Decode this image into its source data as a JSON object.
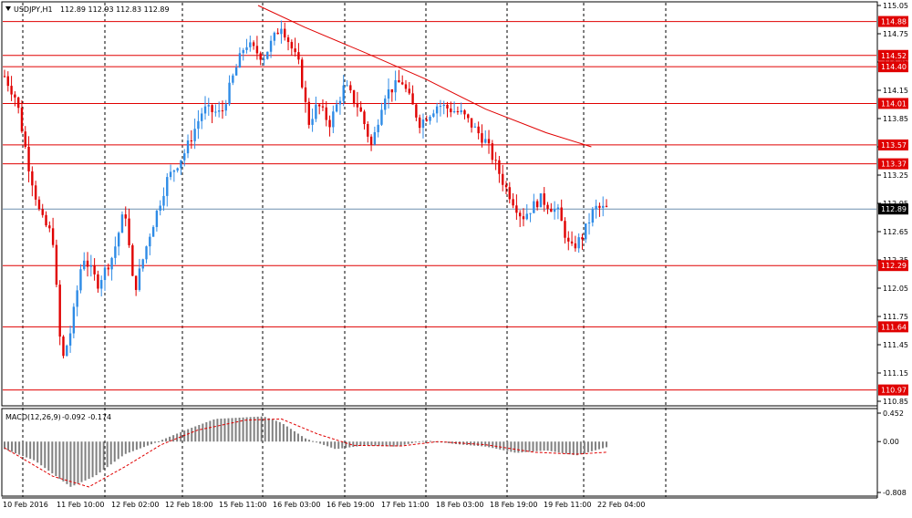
{
  "header": {
    "symbol_label": "USDJPY,H1",
    "ohlc": "112.89 112.93 112.83 112.89",
    "dropdown_icon": "triangle-down-icon"
  },
  "macd": {
    "label": "MACD(12,26,9)",
    "values": "-0.092 -0.174"
  },
  "colors": {
    "bull": "#2E8BE6",
    "bear": "#E00000",
    "level_line": "#E00000",
    "current_line": "#6F8FAF",
    "histogram": "#808080",
    "signal": "#E00000",
    "grid": "#000000"
  },
  "chart_data": [
    {
      "type": "candlestick",
      "title": "USDJPY,H1",
      "ylim": [
        110.85,
        115.05
      ],
      "y_ticks": [
        "115.05",
        "114.75",
        "114.45",
        "114.15",
        "113.85",
        "113.55",
        "113.25",
        "112.95",
        "112.65",
        "112.35",
        "112.05",
        "111.75",
        "111.45",
        "111.15",
        "110.85"
      ],
      "x_tick_labels": [
        "10 Feb 2016",
        "11 Feb 10:00",
        "12 Feb 02:00",
        "12 Feb 18:00",
        "15 Feb 11:00",
        "16 Feb 03:00",
        "16 Feb 19:00",
        "17 Feb 11:00",
        "18 Feb 03:00",
        "18 Feb 19:00",
        "19 Feb 11:00",
        "22 Feb 04:00"
      ],
      "horizontal_levels": [
        {
          "price": 114.88,
          "label": "114.88"
        },
        {
          "price": 114.52,
          "label": "114.52"
        },
        {
          "price": 114.4,
          "label": "114.40"
        },
        {
          "price": 114.01,
          "label": "114.01"
        },
        {
          "price": 113.57,
          "label": "113.57"
        },
        {
          "price": 113.37,
          "label": "113.37"
        },
        {
          "price": 112.29,
          "label": "112.29"
        },
        {
          "price": 111.64,
          "label": "111.64"
        },
        {
          "price": 110.97,
          "label": "110.97"
        }
      ],
      "current_price": {
        "price": 112.89,
        "label": "112.89"
      },
      "moving_average": [
        {
          "x": 0.423,
          "y": 115.05
        },
        {
          "x": 0.5,
          "y": 114.82
        },
        {
          "x": 0.6,
          "y": 114.55
        },
        {
          "x": 0.7,
          "y": 114.27
        },
        {
          "x": 0.8,
          "y": 113.95
        },
        {
          "x": 0.9,
          "y": 113.7
        },
        {
          "x": 0.975,
          "y": 113.55
        }
      ],
      "price_path": [
        {
          "t": 0.0,
          "p": 114.3
        },
        {
          "t": 0.02,
          "p": 114.05
        },
        {
          "t": 0.04,
          "p": 113.35
        },
        {
          "t": 0.06,
          "p": 112.8
        },
        {
          "t": 0.08,
          "p": 112.6
        },
        {
          "t": 0.095,
          "p": 111.25
        },
        {
          "t": 0.11,
          "p": 111.6
        },
        {
          "t": 0.13,
          "p": 112.4
        },
        {
          "t": 0.155,
          "p": 112.1
        },
        {
          "t": 0.18,
          "p": 112.4
        },
        {
          "t": 0.2,
          "p": 112.9
        },
        {
          "t": 0.215,
          "p": 112.0
        },
        {
          "t": 0.24,
          "p": 112.6
        },
        {
          "t": 0.27,
          "p": 113.2
        },
        {
          "t": 0.3,
          "p": 113.5
        },
        {
          "t": 0.33,
          "p": 113.95
        },
        {
          "t": 0.36,
          "p": 113.9
        },
        {
          "t": 0.38,
          "p": 114.3
        },
        {
          "t": 0.4,
          "p": 114.65
        },
        {
          "t": 0.43,
          "p": 114.5
        },
        {
          "t": 0.46,
          "p": 114.85
        },
        {
          "t": 0.49,
          "p": 114.4
        },
        {
          "t": 0.505,
          "p": 113.8
        },
        {
          "t": 0.52,
          "p": 114.0
        },
        {
          "t": 0.54,
          "p": 113.8
        },
        {
          "t": 0.565,
          "p": 114.2
        },
        {
          "t": 0.59,
          "p": 113.95
        },
        {
          "t": 0.61,
          "p": 113.55
        },
        {
          "t": 0.63,
          "p": 114.1
        },
        {
          "t": 0.66,
          "p": 114.25
        },
        {
          "t": 0.69,
          "p": 113.8
        },
        {
          "t": 0.72,
          "p": 114.0
        },
        {
          "t": 0.76,
          "p": 113.9
        },
        {
          "t": 0.8,
          "p": 113.6
        },
        {
          "t": 0.83,
          "p": 113.15
        },
        {
          "t": 0.86,
          "p": 112.8
        },
        {
          "t": 0.89,
          "p": 113.0
        },
        {
          "t": 0.92,
          "p": 112.85
        },
        {
          "t": 0.94,
          "p": 112.45
        },
        {
          "t": 0.96,
          "p": 112.6
        },
        {
          "t": 0.98,
          "p": 112.9
        },
        {
          "t": 1.0,
          "p": 112.89
        }
      ]
    },
    {
      "type": "histogram",
      "title": "MACD(12,26,9)",
      "ylim": [
        -0.808,
        0.452
      ],
      "y_ticks": [
        "0.452",
        "0.00",
        "-0.808"
      ],
      "histogram_path": [
        {
          "t": 0.0,
          "v": -0.12
        },
        {
          "t": 0.05,
          "v": -0.3
        },
        {
          "t": 0.11,
          "v": -0.72
        },
        {
          "t": 0.15,
          "v": -0.55
        },
        {
          "t": 0.2,
          "v": -0.2
        },
        {
          "t": 0.25,
          "v": -0.02
        },
        {
          "t": 0.3,
          "v": 0.18
        },
        {
          "t": 0.35,
          "v": 0.36
        },
        {
          "t": 0.43,
          "v": 0.4
        },
        {
          "t": 0.46,
          "v": 0.3
        },
        {
          "t": 0.5,
          "v": 0.05
        },
        {
          "t": 0.55,
          "v": -0.12
        },
        {
          "t": 0.6,
          "v": -0.06
        },
        {
          "t": 0.65,
          "v": -0.08
        },
        {
          "t": 0.7,
          "v": 0.02
        },
        {
          "t": 0.75,
          "v": -0.04
        },
        {
          "t": 0.8,
          "v": -0.08
        },
        {
          "t": 0.85,
          "v": -0.18
        },
        {
          "t": 0.9,
          "v": -0.14
        },
        {
          "t": 0.95,
          "v": -0.22
        },
        {
          "t": 1.0,
          "v": -0.09
        }
      ],
      "signal_path": [
        {
          "t": 0.0,
          "v": -0.1
        },
        {
          "t": 0.08,
          "v": -0.55
        },
        {
          "t": 0.14,
          "v": -0.72
        },
        {
          "t": 0.2,
          "v": -0.4
        },
        {
          "t": 0.26,
          "v": -0.05
        },
        {
          "t": 0.32,
          "v": 0.18
        },
        {
          "t": 0.4,
          "v": 0.34
        },
        {
          "t": 0.46,
          "v": 0.36
        },
        {
          "t": 0.52,
          "v": 0.12
        },
        {
          "t": 0.58,
          "v": -0.06
        },
        {
          "t": 0.66,
          "v": -0.07
        },
        {
          "t": 0.72,
          "v": 0.0
        },
        {
          "t": 0.8,
          "v": -0.05
        },
        {
          "t": 0.88,
          "v": -0.17
        },
        {
          "t": 0.95,
          "v": -0.2
        },
        {
          "t": 1.0,
          "v": -0.17
        }
      ]
    }
  ]
}
